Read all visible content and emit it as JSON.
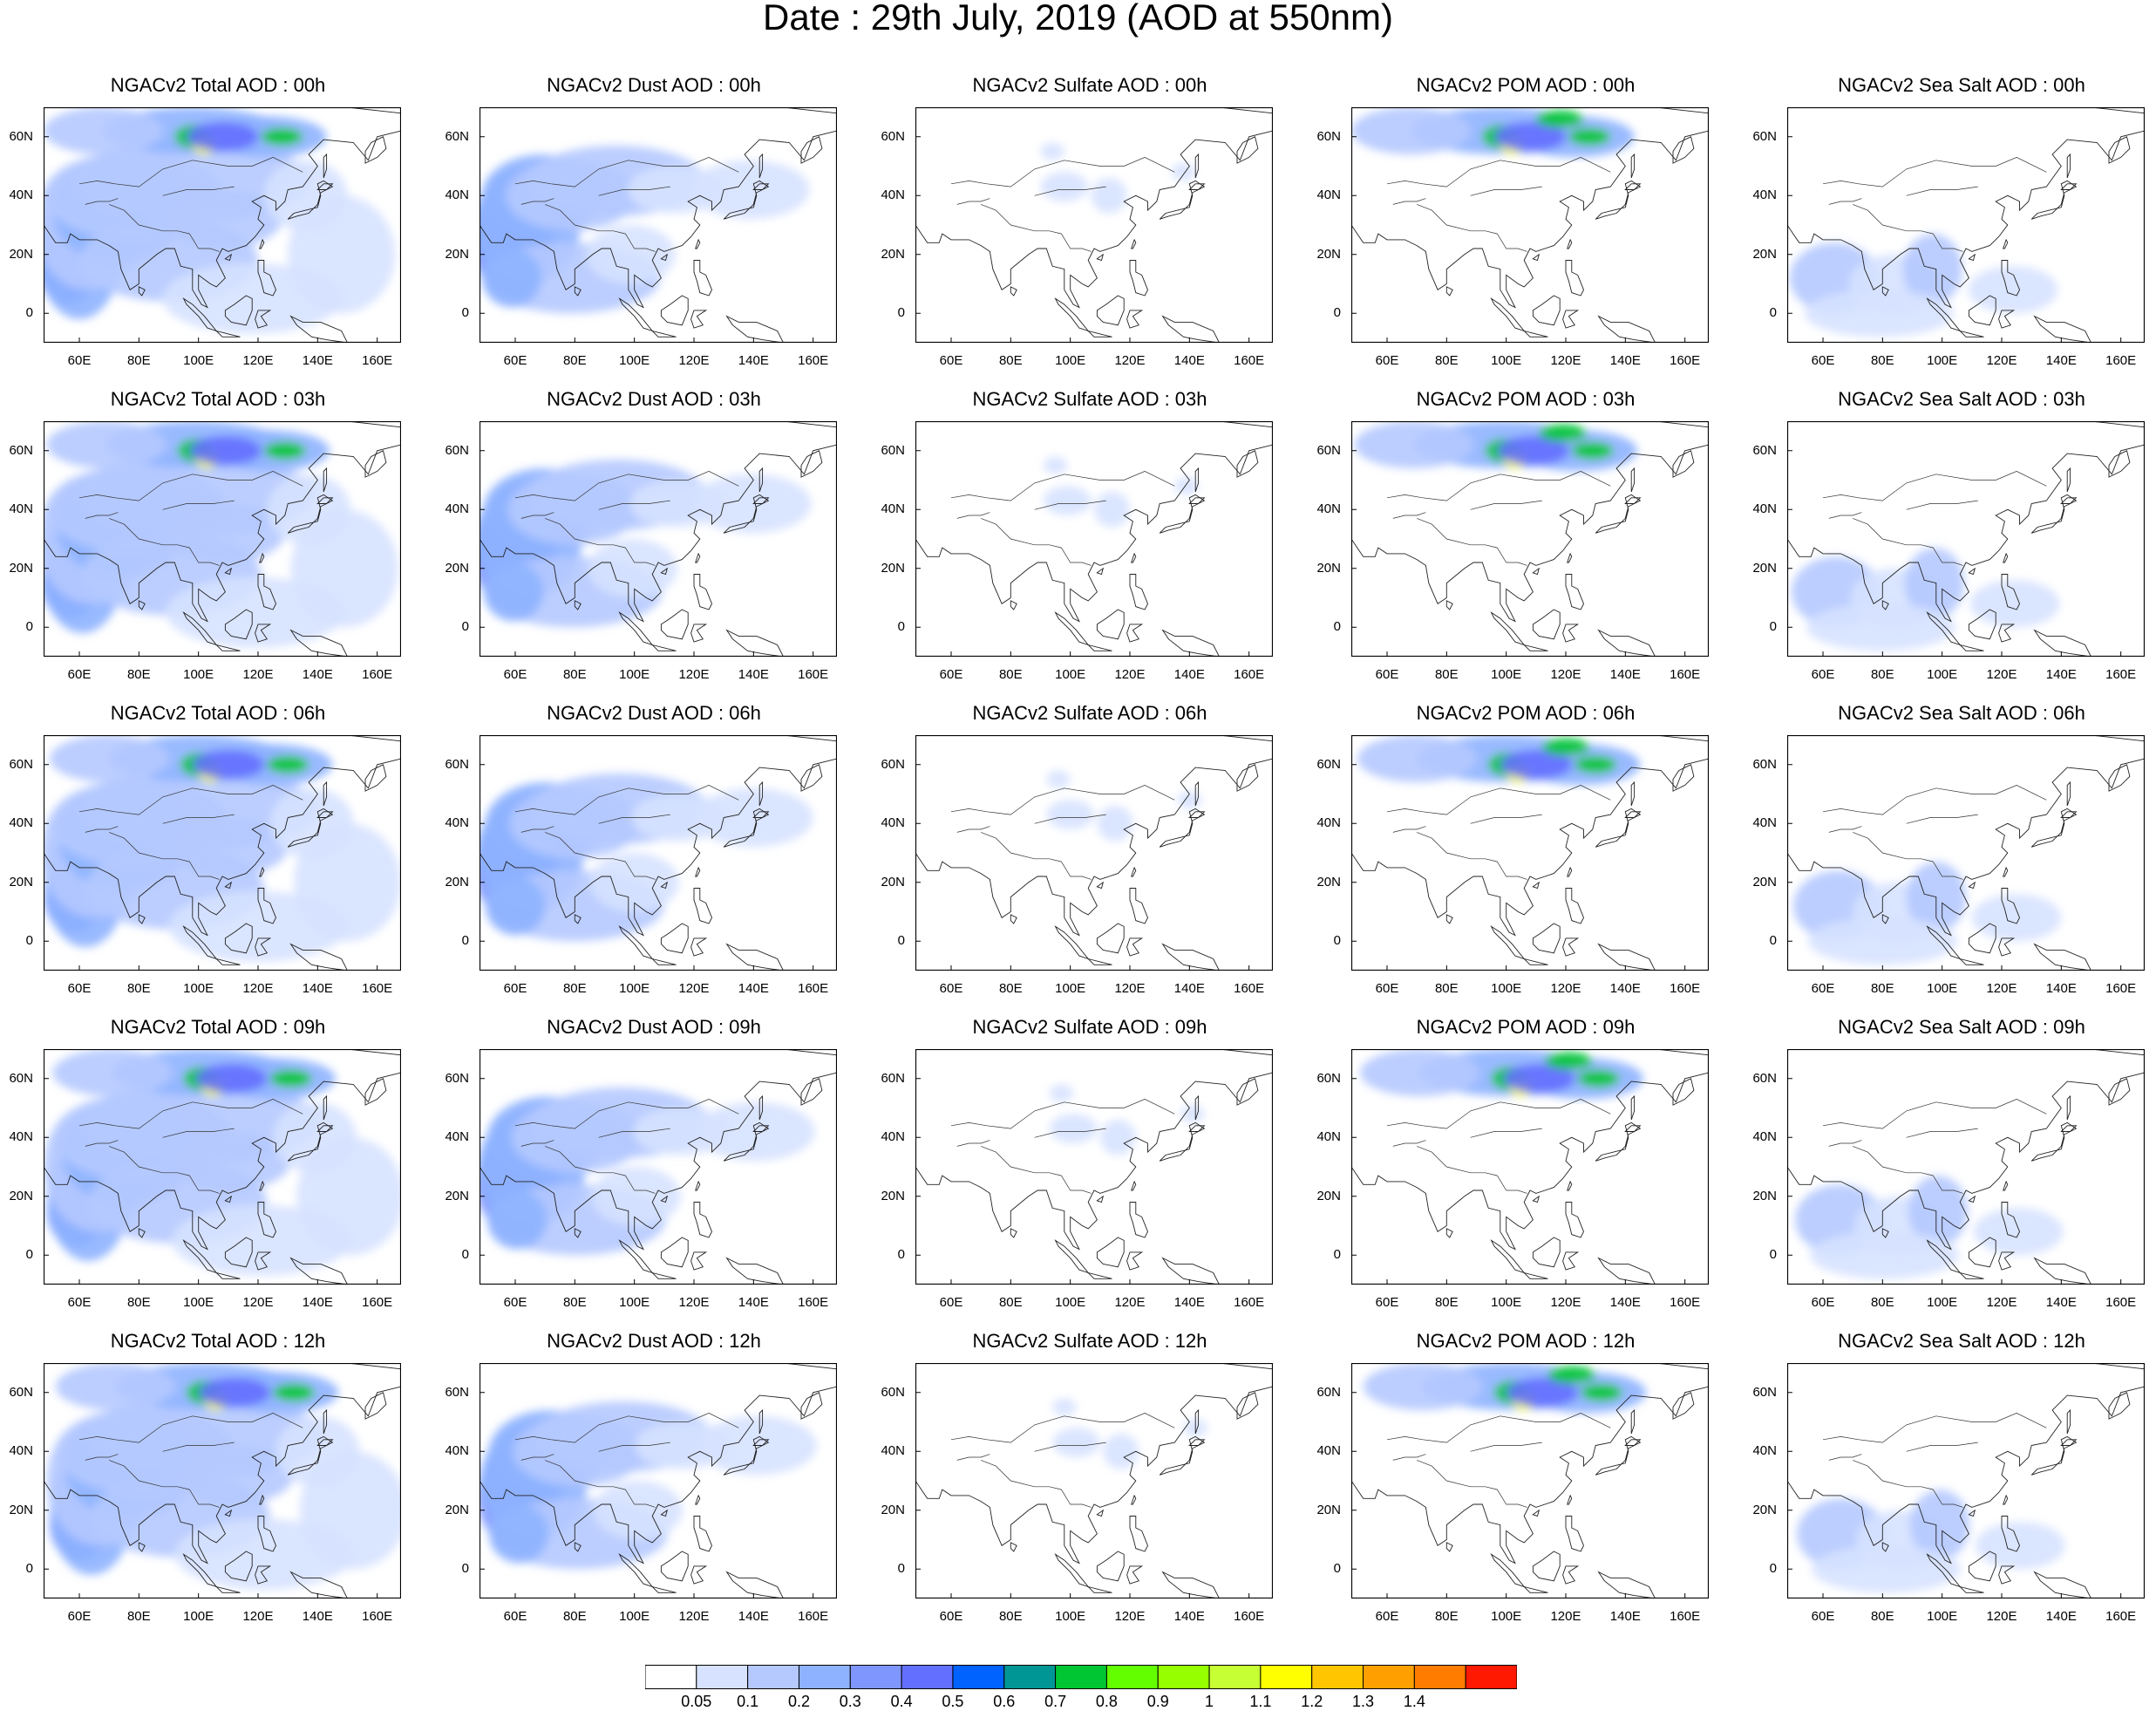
{
  "title": "Date : 29th July, 2019 (AOD at 550nm)",
  "rows": [
    {
      "time": "00h",
      "titles": [
        "NGACv2 Total AOD : 00h",
        "NGACv2 Dust AOD : 00h",
        "NGACv2 Sulfate AOD : 00h",
        "NGACv2 POM AOD : 00h",
        "NGACv2 Sea Salt AOD : 00h"
      ]
    },
    {
      "time": "03h",
      "titles": [
        "NGACv2 Total AOD : 03h",
        "NGACv2 Dust AOD : 03h",
        "NGACv2 Sulfate AOD : 03h",
        "NGACv2 POM AOD : 03h",
        "NGACv2 Sea Salt AOD : 03h"
      ]
    },
    {
      "time": "06h",
      "titles": [
        "NGACv2 Total AOD : 06h",
        "NGACv2 Dust AOD : 06h",
        "NGACv2 Sulfate AOD : 06h",
        "NGACv2 POM AOD : 06h",
        "NGACv2 Sea Salt AOD : 06h"
      ]
    },
    {
      "time": "09h",
      "titles": [
        "NGACv2 Total AOD : 09h",
        "NGACv2 Dust AOD : 09h",
        "NGACv2 Sulfate AOD : 09h",
        "NGACv2 POM AOD : 09h",
        "NGACv2 Sea Salt  AOD : 09h"
      ]
    },
    {
      "time": "12h",
      "titles": [
        "NGACv2 Total AOD  : 12h",
        "NGACv2 Dust AOD : 12h",
        "NGACv2 Sulfate AOD : 12h",
        "NGACv2 POM  AOD : 12h",
        "NGACv2 Sea Salt  AOD : 12h"
      ]
    }
  ],
  "lat_ticks": [
    "60N",
    "40N",
    "20N",
    "0"
  ],
  "lon_ticks": [
    "60E",
    "80E",
    "100E",
    "120E",
    "140E",
    "160E"
  ],
  "colorbar": {
    "labels": [
      "0.05",
      "0.1",
      "0.2",
      "0.3",
      "0.4",
      "0.5",
      "0.6",
      "0.7",
      "0.8",
      "0.9",
      "1",
      "1.1",
      "1.2",
      "1.3",
      "1.4"
    ],
    "colors": [
      "#ffffff",
      "#d6e2ff",
      "#b5c9ff",
      "#8eb2ff",
      "#7f96ff",
      "#6370ff",
      "#0063ff",
      "#009696",
      "#00c633",
      "#63ff00",
      "#96ff00",
      "#c6ff33",
      "#ffff00",
      "#ffc600",
      "#ffa000",
      "#ff7c00",
      "#ff1900"
    ]
  }
}
